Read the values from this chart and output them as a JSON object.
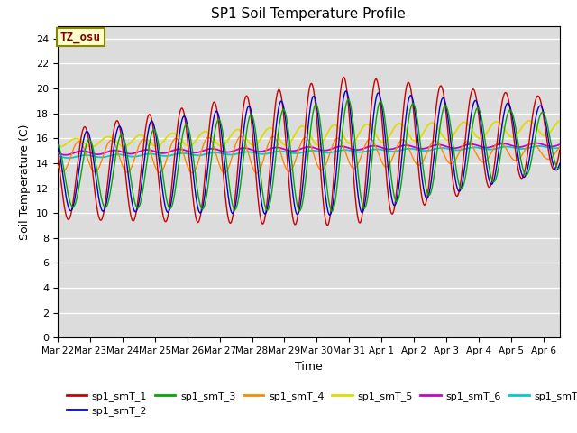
{
  "title": "SP1 Soil Temperature Profile",
  "xlabel": "Time",
  "ylabel": "Soil Temperature (C)",
  "annotation": "TZ_osu",
  "annotation_color": "#880000",
  "annotation_bg": "#ffffcc",
  "annotation_border": "#888800",
  "ylim": [
    0,
    25
  ],
  "yticks": [
    0,
    2,
    4,
    6,
    8,
    10,
    12,
    14,
    16,
    18,
    20,
    22,
    24
  ],
  "background_color": "#dcdcdc",
  "grid_color": "#ffffff",
  "series_colors": {
    "sp1_smT_1": "#cc0000",
    "sp1_smT_2": "#0000cc",
    "sp1_smT_3": "#00aa00",
    "sp1_smT_4": "#ff8800",
    "sp1_smT_5": "#dddd00",
    "sp1_smT_6": "#cc00cc",
    "sp1_smT_7": "#00cccc"
  },
  "xtick_labels": [
    "Mar 22",
    "Mar 23",
    "Mar 24",
    "Mar 25",
    "Mar 26",
    "Mar 27",
    "Mar 28",
    "Mar 29",
    "Mar 30",
    "Mar 31",
    "Apr 1",
    "Apr 2",
    "Apr 3",
    "Apr 4",
    "Apr 5",
    "Apr 6"
  ],
  "xtick_positions": [
    0,
    1,
    2,
    3,
    4,
    5,
    6,
    7,
    8,
    9,
    10,
    11,
    12,
    13,
    14,
    15
  ]
}
